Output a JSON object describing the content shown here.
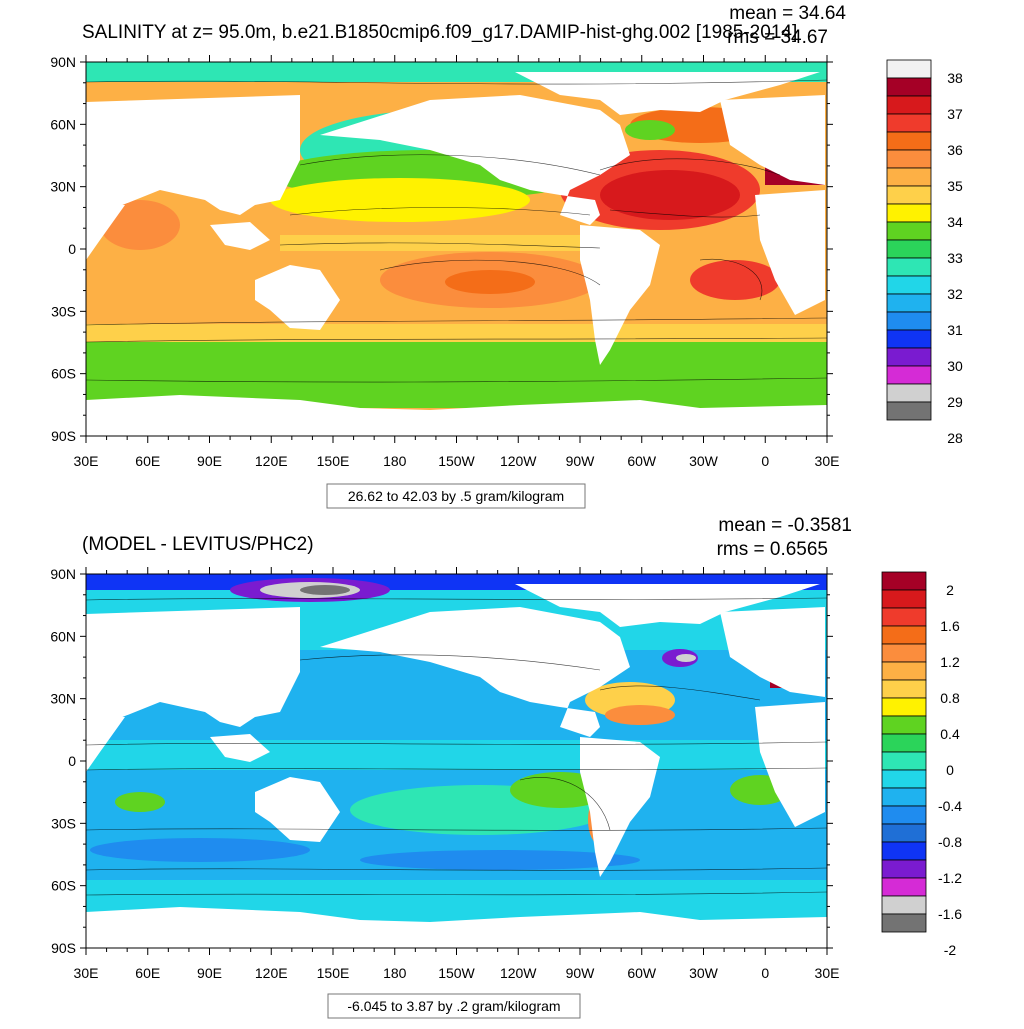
{
  "chart_data": [
    {
      "type": "heatmap",
      "title": "SALINITY at z=  95.0m, b.e21.B1850cmip6.f09_g17.DAMIP-hist-ghg.002 [1985-2014]",
      "stat_mean": "mean = 34.64",
      "stat_rms": "rms = 34.67",
      "range_label": "26.62 to 42.03 by .5 gram/kilogram",
      "y_ticks": [
        "90N",
        "60N",
        "30N",
        "0",
        "30S",
        "60S",
        "90S"
      ],
      "x_ticks": [
        "30E",
        "60E",
        "90E",
        "120E",
        "150E",
        "180",
        "150W",
        "120W",
        "90W",
        "60W",
        "30W",
        "0",
        "30E"
      ],
      "colorbar": {
        "colors": [
          "#f2f2f2",
          "#a50026",
          "#d7191c",
          "#ef3b2c",
          "#f46d18",
          "#fb8d3d",
          "#fdb045",
          "#fed04a",
          "#fff200",
          "#5fd321",
          "#2bd45a",
          "#2ee6b4",
          "#21d6e8",
          "#1fb2ef",
          "#1f8cef",
          "#0f34f5",
          "#7a1bd0",
          "#d52bd6",
          "#d0d0d0",
          "#737373"
        ],
        "labels": [
          "38",
          "37",
          "36",
          "35",
          "34",
          "33",
          "32",
          "31",
          "30",
          "29",
          "28"
        ]
      }
    },
    {
      "type": "heatmap",
      "title": "(MODEL - LEVITUS/PHC2)",
      "stat_mean": "mean = -0.3581",
      "stat_rms": "rms = 0.6565",
      "range_label": "-6.045 to 3.87 by .2 gram/kilogram",
      "y_ticks": [
        "90N",
        "60N",
        "30N",
        "0",
        "30S",
        "60S",
        "90S"
      ],
      "x_ticks": [
        "30E",
        "60E",
        "90E",
        "120E",
        "150E",
        "180",
        "150W",
        "120W",
        "90W",
        "60W",
        "30W",
        "0",
        "30E"
      ],
      "colorbar": {
        "colors": [
          "#a50026",
          "#d7191c",
          "#ef3b2c",
          "#f46d18",
          "#fb8d3d",
          "#fdb045",
          "#fed04a",
          "#fff200",
          "#5fd321",
          "#2bd45a",
          "#2ee6b4",
          "#21d6e8",
          "#1fb2ef",
          "#1f8cef",
          "#1f6fd6",
          "#0f34f5",
          "#7a1bd0",
          "#d52bd6",
          "#d0d0d0",
          "#737373"
        ],
        "labels": [
          "2",
          "1.6",
          "1.2",
          "0.8",
          "0.4",
          "0",
          "-0.4",
          "-0.8",
          "-1.2",
          "-1.6",
          "-2"
        ]
      }
    }
  ]
}
